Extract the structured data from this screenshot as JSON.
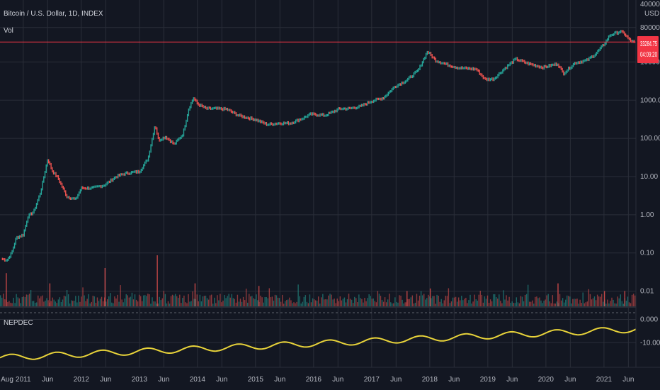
{
  "header": {
    "symbol_title": "Bitcoin / U.S. Dollar, 1D, INDEX",
    "volume_label": "Vol",
    "currency": "USD"
  },
  "indicator": {
    "name": "NEPDEC",
    "color": "#e8d33a"
  },
  "price_tag": {
    "price": "33284.75",
    "countdown": "04:09:20",
    "color": "#f23645"
  },
  "colors": {
    "background": "#131722",
    "grid": "#2a2e39",
    "up": "#26a69a",
    "down": "#ef5350",
    "price_line": "#f23645",
    "text": "#b2b5be"
  },
  "chart_data": [
    {
      "type": "line",
      "title": "Bitcoin / U.S. Dollar, 1D, INDEX",
      "scale": "log",
      "ylabel": "USD",
      "y_ticks": [
        "400000.00",
        "80000.00",
        "10000.00",
        "1000.00",
        "100.00",
        "10.00",
        "1.00",
        "0.10",
        "0.01"
      ],
      "y_tick_values": [
        400000,
        80000,
        10000,
        1000,
        100,
        10,
        1,
        0.1,
        0.01
      ],
      "ylim": [
        0.004,
        420000
      ],
      "xlim": [
        2010.6,
        2021.55
      ],
      "x_ticks": [
        "Aug",
        "2011",
        "Jun",
        "2012",
        "Jun",
        "2013",
        "Jun",
        "2014",
        "Jun",
        "2015",
        "Jun",
        "2016",
        "Jun",
        "2017",
        "Jun",
        "2018",
        "Jun",
        "2019",
        "Jun",
        "2020",
        "Jun",
        "2021",
        "Jun"
      ],
      "x_tick_values": [
        2010.58,
        2011.0,
        2011.42,
        2012.0,
        2012.42,
        2013.0,
        2013.42,
        2014.0,
        2014.42,
        2015.0,
        2015.42,
        2016.0,
        2016.42,
        2017.0,
        2017.42,
        2018.0,
        2018.42,
        2019.0,
        2019.42,
        2020.0,
        2020.42,
        2021.0,
        2021.42
      ],
      "current_price": 33284.75,
      "series": [
        {
          "x": [
            2010.62,
            2010.72,
            2010.8,
            2010.88,
            2011.0,
            2011.08,
            2011.18,
            2011.3,
            2011.42,
            2011.5,
            2011.6,
            2011.75,
            2011.9,
            2012.0,
            2012.2,
            2012.4,
            2012.6,
            2012.75,
            2012.9,
            2013.0,
            2013.15,
            2013.27,
            2013.33,
            2013.45,
            2013.6,
            2013.75,
            2013.85,
            2013.93,
            2014.0,
            2014.15,
            2014.3,
            2014.5,
            2014.7,
            2014.85,
            2015.0,
            2015.2,
            2015.4,
            2015.6,
            2015.8,
            2015.95,
            2016.2,
            2016.45,
            2016.6,
            2016.8,
            2017.0,
            2017.2,
            2017.4,
            2017.6,
            2017.8,
            2017.96,
            2018.1,
            2018.3,
            2018.5,
            2018.8,
            2018.95,
            2019.1,
            2019.3,
            2019.48,
            2019.7,
            2019.95,
            2020.2,
            2020.3,
            2020.5,
            2020.7,
            2020.85,
            2021.0,
            2021.1,
            2021.28,
            2021.35,
            2021.45,
            2021.52
          ],
          "y": [
            0.07,
            0.065,
            0.1,
            0.25,
            0.3,
            0.9,
            1.2,
            4.0,
            29.0,
            14.0,
            9.0,
            3.0,
            2.5,
            5.0,
            5.0,
            6.0,
            10.0,
            12.0,
            13.0,
            13.5,
            30.0,
            230.0,
            90.0,
            110.0,
            70.0,
            130.0,
            600.0,
            1150.0,
            800.0,
            600.0,
            600.0,
            580.0,
            400.0,
            350.0,
            310.0,
            230.0,
            250.0,
            250.0,
            330.0,
            430.0,
            400.0,
            600.0,
            600.0,
            680.0,
            950.0,
            1150.0,
            2300.0,
            3300.0,
            6000.0,
            19000.0,
            11000.0,
            8500.0,
            7000.0,
            6500.0,
            3500.0,
            3600.0,
            7000.0,
            12000.0,
            9000.0,
            7200.0,
            9000.0,
            5000.0,
            9500.0,
            11000.0,
            16000.0,
            29000.0,
            50000.0,
            63000.0,
            55000.0,
            36000.0,
            33284.75
          ]
        }
      ]
    },
    {
      "type": "bar",
      "title": "Vol",
      "x_range": [
        2010.6,
        2021.55
      ],
      "spikes": [
        {
          "x": 2013.3,
          "value": 1.0
        },
        {
          "x": 2012.4,
          "value": 0.75
        },
        {
          "x": 2010.7,
          "value": 0.65
        },
        {
          "x": 2011.45,
          "value": 0.45
        },
        {
          "x": 2013.95,
          "value": 0.45
        },
        {
          "x": 2015.05,
          "value": 0.4
        },
        {
          "x": 2017.6,
          "value": 0.3
        },
        {
          "x": 2018.0,
          "value": 0.35
        },
        {
          "x": 2020.2,
          "value": 0.45
        },
        {
          "x": 2021.0,
          "value": 0.3
        },
        {
          "x": 2021.35,
          "value": 0.3
        }
      ]
    },
    {
      "type": "line",
      "title": "NEPDEC",
      "y_ticks": [
        "0.000",
        "-10.000"
      ],
      "y_tick_values": [
        0,
        -10
      ],
      "ylim": [
        -20,
        2
      ],
      "x_range": [
        2010.6,
        2021.55
      ],
      "trend_start": -16.5,
      "trend_end": -4.2,
      "cycles": 14,
      "amplitude": 1.3
    }
  ]
}
